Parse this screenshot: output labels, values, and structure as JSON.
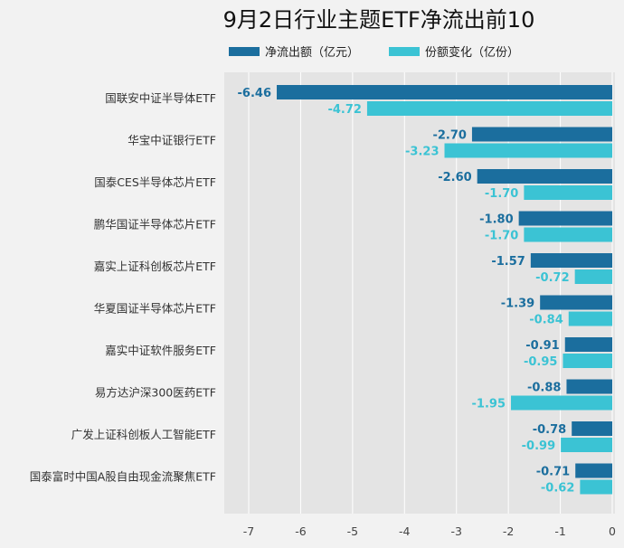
{
  "chart_data": {
    "type": "bar",
    "orientation": "horizontal",
    "title": "9月2日行业主题ETF净流出前10",
    "categories": [
      "国联安中证半导体ETF",
      "华宝中证银行ETF",
      "国泰CES半导体芯片ETF",
      "鹏华国证半导体芯片ETF",
      "嘉实上证科创板芯片ETF",
      "华夏国证半导体芯片ETF",
      "嘉实中证软件服务ETF",
      "易方达沪深300医药ETF",
      "广发上证科创板人工智能ETF",
      "国泰富时中国A股自由现金流聚焦ETF"
    ],
    "series": [
      {
        "name": "净流出额（亿元）",
        "color": "#1b6e9e",
        "values": [
          -6.46,
          -2.7,
          -2.6,
          -1.8,
          -1.57,
          -1.39,
          -0.91,
          -0.88,
          -0.78,
          -0.71
        ],
        "labels": [
          "-6.46",
          "-2.70",
          "-2.60",
          "-1.80",
          "-1.57",
          "-1.39",
          "-0.91",
          "-0.88",
          "-0.78",
          "-0.71"
        ]
      },
      {
        "name": "份额变化（亿份）",
        "color": "#3bc3d4",
        "values": [
          -4.72,
          -3.23,
          -1.7,
          -1.7,
          -0.72,
          -0.84,
          -0.95,
          -1.95,
          -0.99,
          -0.62
        ],
        "labels": [
          "-4.72",
          "-3.23",
          "-1.70",
          "-1.70",
          "-0.72",
          "-0.84",
          "-0.95",
          "-1.95",
          "-0.99",
          "-0.62"
        ]
      }
    ],
    "xlim": [
      -7.5,
      0
    ],
    "xticks": [
      -7,
      -6,
      -5,
      -4,
      -3,
      -2,
      -1,
      0
    ],
    "xtick_labels": [
      "-7",
      "-6",
      "-5",
      "-4",
      "-3",
      "-2",
      "-1",
      "0"
    ],
    "grid": true,
    "legend_position": "top"
  }
}
